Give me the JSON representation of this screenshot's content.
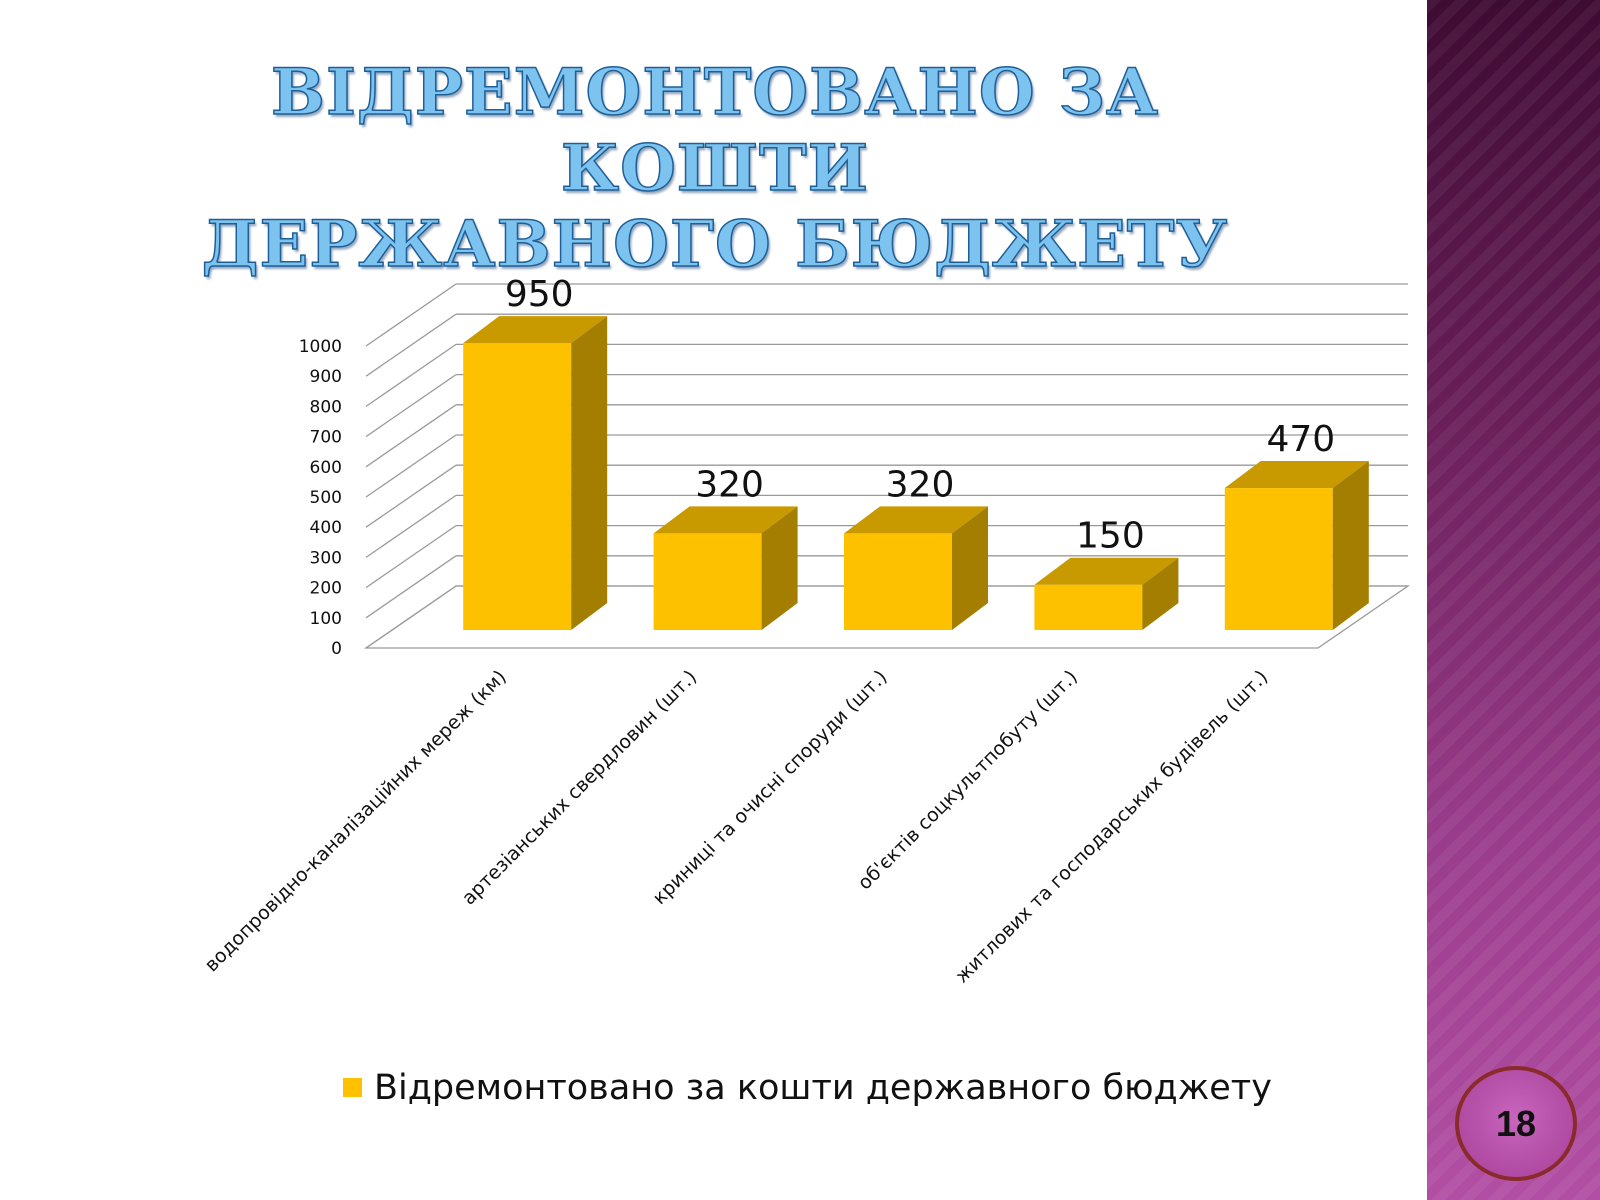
{
  "slide": {
    "title_lines": [
      "ВІДРЕМОНТОВАНО ЗА КОШТИ",
      "ДЕРЖАВНОГО БЮДЖЕТУ"
    ],
    "page_number": "18"
  },
  "colors": {
    "bar_front": "#fdc100",
    "bar_top": "#c99a00",
    "bar_side": "#a37e00",
    "title_fill": "#7cc4ef",
    "side_band": "#8a2f7c"
  },
  "chart_data": {
    "type": "bar",
    "style": "3d-column",
    "categories": [
      "водопровідно-каналізаційних мереж (км)",
      "артезіанських свердловин (шт.)",
      "криниці та очисні споруди (шт.)",
      "об'єктів соцкультпобуту (шт.)",
      "житлових та господарських будівель (шт.)"
    ],
    "series": [
      {
        "name": "Відремонтовано за кошти державного бюджету",
        "values": [
          950,
          320,
          320,
          150,
          470
        ]
      }
    ],
    "data_labels": [
      "950",
      "320",
      "320",
      "150",
      "470"
    ],
    "y_ticks": [
      "0",
      "100",
      "200",
      "300",
      "400",
      "500",
      "600",
      "700",
      "800",
      "900",
      "1000"
    ],
    "ylim": [
      0,
      1000
    ],
    "grid": true,
    "legend_position": "bottom"
  }
}
